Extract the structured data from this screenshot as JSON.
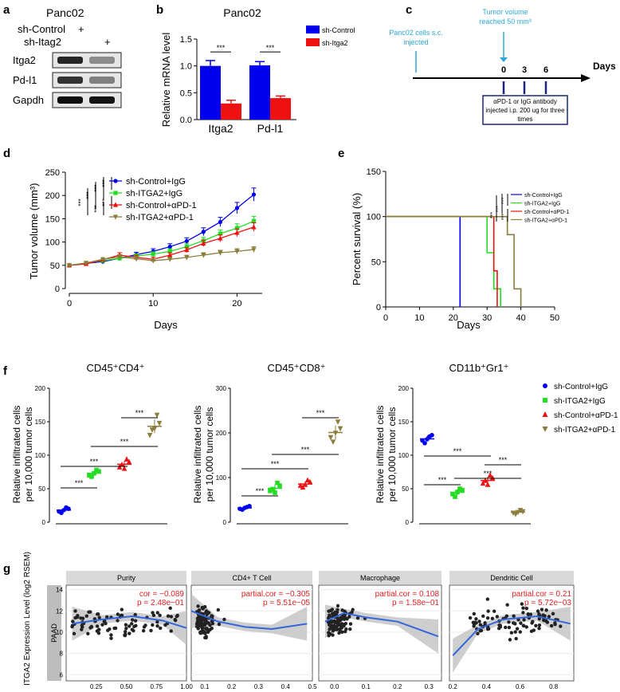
{
  "colors": {
    "blue": "#0000ee",
    "red": "#ee1111",
    "green": "#22dd22",
    "olive": "#8b7d3a",
    "cyan": "#2aa8d8",
    "navy": "#1a237e",
    "strip": "#d9d9d9",
    "strip_dark": "#bdbdbd",
    "grid": "#ebebeb",
    "fit": "#3366dd"
  },
  "panels": {
    "a": {
      "label": "a",
      "title": "Panc02",
      "row1": "sh-Control",
      "row2": "sh-Itag2",
      "plus1": "+",
      "plus2": "+",
      "bands": [
        "Itga2",
        "Pd-l1",
        "Gapdh"
      ]
    },
    "b": {
      "label": "b",
      "chart_data": {
        "type": "bar",
        "title": "Panc02",
        "ylabel": "Relative mRNA level",
        "categories": [
          "Itga2",
          "Pd-l1"
        ],
        "series": [
          {
            "name": "sh-Control",
            "values": [
              1.0,
              1.01
            ],
            "errors": [
              0.1,
              0.07
            ]
          },
          {
            "name": "sh-Itga2",
            "values": [
              0.3,
              0.4
            ],
            "errors": [
              0.06,
              0.04
            ]
          }
        ],
        "ylim": [
          0,
          1.5
        ],
        "yticks": [
          "0.0",
          "0.5",
          "1.0",
          "1.5"
        ],
        "significance": [
          "***",
          "***"
        ]
      }
    },
    "c": {
      "label": "c",
      "event1": "Panc02 cells s.c.\ninjected",
      "event2": "Tumor volume\nreached 50 mm³",
      "axis_label": "Days",
      "ticks": [
        "0",
        "3",
        "6"
      ],
      "box_text": "αPD-1 or IgG antibody\ninjected i.p. 200 ug for three\ntimes"
    },
    "d": {
      "label": "d",
      "chart_data": {
        "type": "line",
        "xlabel": "Days",
        "ylabel": "Tumor volume (mm³)",
        "xlim": [
          0,
          23
        ],
        "ylim": [
          0,
          250
        ],
        "xticks": [
          "0",
          "10",
          "20"
        ],
        "yticks": [
          "0",
          "50",
          "100",
          "150",
          "200",
          "250"
        ],
        "x": [
          0,
          2,
          4,
          6,
          8,
          10,
          12,
          14,
          16,
          18,
          20,
          22
        ],
        "series": [
          {
            "name": "sh-Control+IgG",
            "marker": "circle",
            "values": [
              50,
              54,
              58,
              65,
              73,
              80,
              90,
              102,
              122,
              143,
              173,
              202
            ]
          },
          {
            "name": "sh-ITGA2+IgG",
            "marker": "square",
            "values": [
              50,
              55,
              60,
              65,
              70,
              74,
              80,
              90,
              103,
              118,
              130,
              145
            ]
          },
          {
            "name": "sh-Control+αPD-1",
            "marker": "triangle",
            "values": [
              50,
              53,
              62,
              72,
              67,
              63,
              72,
              83,
              97,
              108,
              120,
              132
            ]
          },
          {
            "name": "sh-ITGA2+αPD-1",
            "marker": "triangle-down",
            "values": [
              50,
              55,
              63,
              68,
              64,
              60,
              63,
              67,
              72,
              77,
              80,
              84
            ]
          }
        ],
        "significance": [
          "***",
          "***",
          "***",
          "***",
          "***",
          "***"
        ]
      }
    },
    "e": {
      "label": "e",
      "chart_data": {
        "type": "line",
        "xlabel": "Days",
        "ylabel": "Percent survival (%)",
        "xlim": [
          0,
          50
        ],
        "ylim": [
          0,
          150
        ],
        "xticks": [
          "0",
          "10",
          "20",
          "30",
          "40",
          "50"
        ],
        "yticks": [
          "0",
          "50",
          "100",
          "150"
        ],
        "series": [
          {
            "name": "sh-Control+IgG",
            "steps": [
              [
                0,
                100
              ],
              [
                22,
                100
              ],
              [
                22,
                0
              ]
            ]
          },
          {
            "name": "sh-ITGA2+IgG",
            "steps": [
              [
                0,
                100
              ],
              [
                30,
                100
              ],
              [
                30,
                60
              ],
              [
                32,
                60
              ],
              [
                32,
                20
              ],
              [
                34,
                20
              ],
              [
                34,
                0
              ]
            ]
          },
          {
            "name": "sh-Control+αPD-1",
            "steps": [
              [
                0,
                100
              ],
              [
                32,
                100
              ],
              [
                32,
                40
              ],
              [
                33,
                40
              ],
              [
                33,
                0
              ]
            ]
          },
          {
            "name": "sh-ITGA2+αPD-1",
            "steps": [
              [
                0,
                100
              ],
              [
                36,
                100
              ],
              [
                36,
                80
              ],
              [
                38,
                80
              ],
              [
                38,
                20
              ],
              [
                40,
                20
              ],
              [
                40,
                0
              ]
            ]
          }
        ],
        "significance": [
          "***",
          "***",
          "***",
          "***"
        ]
      }
    },
    "f": {
      "label": "f",
      "legend": [
        "sh-Control+IgG",
        "sh-ITGA2+IgG",
        "sh-Control+αPD-1",
        "sh-ITGA2+αPD-1"
      ],
      "ylabel_line1": "Relative  infiltrated cells",
      "ylabel_line2": "per 10,000 tumor cells",
      "chart_data": [
        {
          "type": "scatter",
          "title": "CD45⁺CD4⁺",
          "ylim": [
            0,
            200
          ],
          "yticks": [
            "0",
            "50",
            "100",
            "150",
            "200"
          ],
          "groups": [
            [
              16,
              20,
              14,
              22,
              18
            ],
            [
              70,
              76,
              68,
              78,
              73
            ],
            [
              82,
              90,
              86,
              94,
              80
            ],
            [
              130,
              148,
              138,
              160,
              140
            ]
          ],
          "brackets": [
            [
              0,
              1,
              "***"
            ],
            [
              0,
              2,
              "***"
            ],
            [
              1,
              3,
              "***"
            ],
            [
              2,
              3,
              "***"
            ]
          ]
        },
        {
          "type": "scatter",
          "title": "CD45⁺CD8⁺",
          "ylim": [
            0,
            300
          ],
          "yticks": [
            "0",
            "100",
            "200",
            "300"
          ],
          "groups": [
            [
              30,
              36,
              28,
              34,
              32
            ],
            [
              70,
              82,
              74,
              88,
              66
            ],
            [
              82,
              90,
              78,
              94,
              84
            ],
            [
              190,
              210,
              180,
              225,
              200
            ]
          ],
          "brackets": [
            [
              0,
              1,
              "***"
            ],
            [
              0,
              2,
              "***"
            ],
            [
              1,
              3,
              "***"
            ],
            [
              2,
              3,
              "***"
            ]
          ]
        },
        {
          "type": "scatter",
          "title": "CD11b⁺Gr1⁺",
          "ylim": [
            0,
            200
          ],
          "yticks": [
            "0",
            "50",
            "100",
            "150",
            "200"
          ],
          "groups": [
            [
              122,
              130,
              118,
              128,
              124
            ],
            [
              42,
              48,
              38,
              50,
              45
            ],
            [
              58,
              66,
              62,
              70,
              56
            ],
            [
              14,
              16,
              12,
              18,
              15
            ]
          ],
          "brackets": [
            [
              0,
              1,
              "***"
            ],
            [
              0,
              2,
              "***"
            ],
            [
              1,
              3,
              "***"
            ],
            [
              2,
              3,
              "***"
            ]
          ]
        }
      ]
    },
    "g": {
      "label": "g",
      "ylabel": "ITGA2 Expression Level (log2 RSEM)",
      "row_label": "PAAD",
      "yticks": [
        "6",
        "8",
        "10",
        "12",
        "14"
      ],
      "chart_data": [
        {
          "type": "scatter",
          "title": "Purity",
          "stat1": "cor = −0.089",
          "stat2": "p = 2.48e−01",
          "xlim": [
            0,
            1.0
          ],
          "xticks": [
            "0.25",
            "0.50",
            "0.75",
            "1.00"
          ],
          "xtick_values": [
            0.25,
            0.5,
            0.75,
            1.0
          ],
          "fit": [
            [
              0.05,
              10.8
            ],
            [
              0.3,
              11.2
            ],
            [
              0.55,
              11.5
            ],
            [
              0.8,
              11.1
            ],
            [
              1.0,
              10.4
            ]
          ]
        },
        {
          "type": "scatter",
          "title": "CD4+ T Cell",
          "stat1": "partial.cor = −0.305",
          "stat2": "p = 5.51e−05",
          "xlim": [
            0.05,
            0.5
          ],
          "xticks": [
            "0.1",
            "0.2",
            "0.3",
            "0.4",
            "0.5"
          ],
          "xtick_values": [
            0.1,
            0.2,
            0.3,
            0.4,
            0.5
          ],
          "fit": [
            [
              0.05,
              12.0
            ],
            [
              0.15,
              11.0
            ],
            [
              0.25,
              10.5
            ],
            [
              0.35,
              10.3
            ],
            [
              0.48,
              10.8
            ]
          ]
        },
        {
          "type": "scatter",
          "title": "Macrophage",
          "stat1": "partial.cor = 0.108",
          "stat2": "p = 1.58e−01",
          "xlim": [
            -0.05,
            0.34
          ],
          "xticks": [
            "0.0",
            "0.1",
            "0.2",
            "0.3"
          ],
          "xtick_values": [
            0.0,
            0.1,
            0.2,
            0.3
          ],
          "fit": [
            [
              -0.03,
              11.0
            ],
            [
              0.03,
              11.8
            ],
            [
              0.1,
              11.4
            ],
            [
              0.2,
              11.0
            ],
            [
              0.33,
              9.6
            ]
          ]
        },
        {
          "type": "scatter",
          "title": "Dendritic Cell",
          "stat1": "partial.cor = 0.21",
          "stat2": "p = 5.72e−03",
          "xlim": [
            0.18,
            0.92
          ],
          "xticks": [
            "0.2",
            "0.4",
            "0.6",
            "0.8"
          ],
          "xtick_values": [
            0.2,
            0.4,
            0.6,
            0.8
          ],
          "fit": [
            [
              0.2,
              7.8
            ],
            [
              0.35,
              10.3
            ],
            [
              0.5,
              11.2
            ],
            [
              0.7,
              11.5
            ],
            [
              0.9,
              10.8
            ]
          ]
        }
      ]
    }
  }
}
